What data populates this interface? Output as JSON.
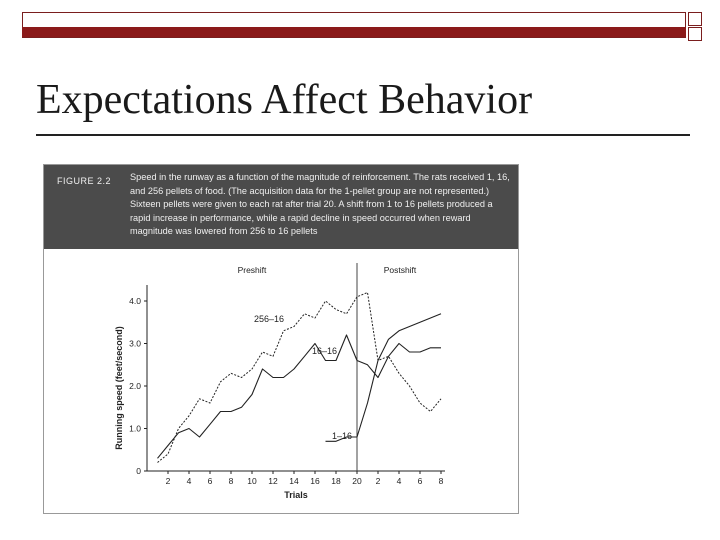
{
  "slide": {
    "title": "Expectations Affect Behavior"
  },
  "figure": {
    "label": "FIGURE 2.2",
    "caption": "Speed in the runway as a function of the magnitude of reinforcement. The rats received 1, 16, and 256 pellets of food. (The acquisition data for the 1-pellet group are not represented.) Sixteen pellets were given to each rat after trial 20. A shift from 1 to 16 pellets produced a rapid increase in performance, while a rapid decline in speed occurred when reward magnitude was lowered from 256 to 16 pellets"
  },
  "chart_data": {
    "type": "line",
    "xlabel": "Trials",
    "ylabel": "Running speed (feet/second)",
    "ylim": [
      0,
      4.0
    ],
    "yticks": [
      "0",
      "1.0",
      "2.0",
      "3.0",
      "4.0"
    ],
    "xticks": [
      "2",
      "4",
      "6",
      "8",
      "10",
      "12",
      "14",
      "16",
      "18",
      "20",
      "2",
      "4",
      "6",
      "8"
    ],
    "phase_labels": [
      "Preshift",
      "Postshift"
    ],
    "series": [
      {
        "name": "256–16",
        "style": "dashed",
        "x": [
          1,
          2,
          3,
          4,
          5,
          6,
          7,
          8,
          9,
          10,
          11,
          12,
          13,
          14,
          15,
          16,
          17,
          18,
          19,
          20,
          21,
          22,
          23,
          24,
          25,
          26,
          27,
          28
        ],
        "y": [
          0.2,
          0.4,
          1.0,
          1.3,
          1.7,
          1.6,
          2.1,
          2.3,
          2.2,
          2.4,
          2.8,
          2.7,
          3.3,
          3.4,
          3.7,
          3.6,
          4.0,
          3.8,
          3.7,
          4.1,
          4.2,
          2.6,
          2.7,
          2.3,
          2.0,
          1.6,
          1.4,
          1.7
        ]
      },
      {
        "name": "16–16",
        "style": "solid",
        "x": [
          1,
          2,
          3,
          4,
          5,
          6,
          7,
          8,
          9,
          10,
          11,
          12,
          13,
          14,
          15,
          16,
          17,
          18,
          19,
          20,
          21,
          22,
          23,
          24,
          25,
          26,
          27,
          28
        ],
        "y": [
          0.3,
          0.6,
          0.9,
          1.0,
          0.8,
          1.1,
          1.4,
          1.4,
          1.5,
          1.8,
          2.4,
          2.2,
          2.2,
          2.4,
          2.7,
          3.0,
          2.6,
          2.6,
          3.2,
          2.6,
          2.5,
          2.2,
          2.7,
          3.0,
          2.8,
          2.8,
          2.9,
          2.9
        ]
      },
      {
        "name": "1–16",
        "style": "solid",
        "x": [
          17,
          18,
          19,
          20,
          21,
          22,
          23,
          24,
          25,
          26,
          27,
          28
        ],
        "y": [
          0.7,
          0.7,
          0.8,
          0.8,
          1.6,
          2.6,
          3.1,
          3.3,
          3.4,
          3.5,
          3.6,
          3.7
        ]
      }
    ]
  }
}
